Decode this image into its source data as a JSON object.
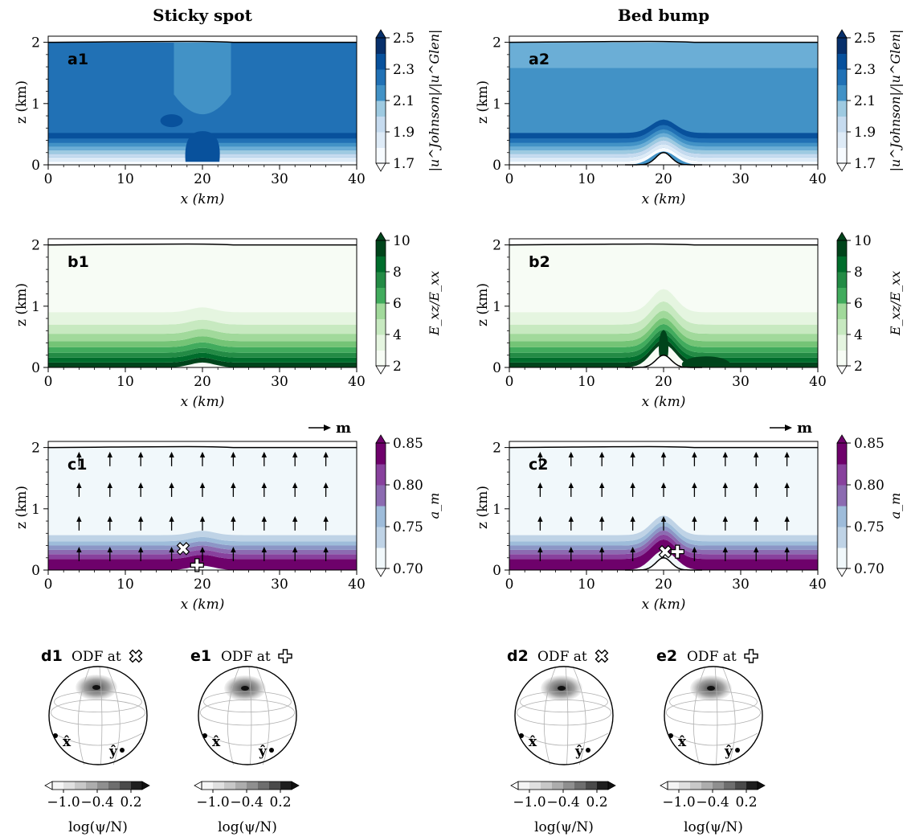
{
  "columns": [
    {
      "key": "sticky",
      "title": "Sticky spot"
    },
    {
      "key": "bump",
      "title": "Bed bump"
    }
  ],
  "axes": {
    "xlabel": "x (km)",
    "ylabel": "z (km)",
    "xticks": [
      0,
      10,
      20,
      30,
      40
    ],
    "yticks": [
      0,
      1,
      2
    ],
    "xlim": [
      0,
      40
    ],
    "ylim": [
      0,
      2.1
    ]
  },
  "rows": [
    {
      "key": "a",
      "colormap": "Blues",
      "colorbar": {
        "label": "|u^Johnson|/|u^Glen|",
        "ticks": [
          "1.7",
          "1.9",
          "2.1",
          "2.3",
          "2.5"
        ],
        "range": [
          1.7,
          2.5
        ],
        "levels": 8
      },
      "panel_labels": [
        "a1",
        "a2"
      ]
    },
    {
      "key": "b",
      "colormap": "Greens",
      "colorbar": {
        "label": "E_xz/E_xx",
        "ticks": [
          "2",
          "4",
          "6",
          "8",
          "10"
        ],
        "range": [
          2,
          10
        ],
        "levels": 8
      },
      "panel_labels": [
        "b1",
        "b2"
      ]
    },
    {
      "key": "c",
      "colormap": "BuPu",
      "colorbar": {
        "label": "a_m",
        "ticks": [
          "0.70",
          "0.75",
          "0.80",
          "0.85"
        ],
        "range": [
          0.7,
          0.85
        ],
        "levels": 6
      },
      "panel_labels": [
        "c1",
        "c2"
      ],
      "arrow_legend": "m"
    }
  ],
  "odf_panels": [
    {
      "label": "d1",
      "title": "ODF at",
      "marker": "cross"
    },
    {
      "label": "e1",
      "title": "ODF at",
      "marker": "plus"
    },
    {
      "label": "d2",
      "title": "ODF at",
      "marker": "cross"
    },
    {
      "label": "e2",
      "title": "ODF at",
      "marker": "plus"
    }
  ],
  "odf_colorbar": {
    "label": "log(ψ/N)",
    "ticks": [
      "−1.0",
      "−0.4",
      "0.2"
    ],
    "range": [
      -1.2,
      0.4
    ],
    "levels": 8
  },
  "odf_axis_labels": {
    "x": "x̂",
    "y": "ŷ"
  },
  "colors": {
    "blues": [
      "#f7fbff",
      "#deebf7",
      "#c6dbef",
      "#9ecae1",
      "#6baed6",
      "#4292c6",
      "#2171b5",
      "#08519c",
      "#08306b"
    ],
    "greens": [
      "#f7fcf5",
      "#e5f5e0",
      "#c7e9c0",
      "#a1d99b",
      "#74c476",
      "#41ab5d",
      "#238b45",
      "#006d2c",
      "#00441b"
    ],
    "bupu": [
      "#f1f8fb",
      "#bfd3e6",
      "#9ebcda",
      "#8c96c6",
      "#8c6bb1",
      "#88419d",
      "#6e016b"
    ],
    "greys": [
      "#f5f5f5",
      "#e0e0e0",
      "#c8c8c8",
      "#adadad",
      "#8f8f8f",
      "#6e6e6e",
      "#4a4a4a",
      "#1e1e1e"
    ]
  },
  "chart_data": {
    "type": "heatmap",
    "description_fields": {
      "x_range_km": [
        0,
        40
      ],
      "z_range_km": [
        0,
        2.1
      ],
      "sticky_spot_center_km": 20,
      "bed_bump_center_km": 20,
      "bed_bump_height_km": 0.2
    },
    "panels": [
      {
        "panel": "a1",
        "field": "|u^Johnson|/|u^Glen|",
        "typical_value_interior": 2.4,
        "basal_value": 1.7
      },
      {
        "panel": "a2",
        "field": "|u^Johnson|/|u^Glen|",
        "typical_value_interior": 2.25,
        "basal_value": 1.7
      },
      {
        "panel": "b1",
        "field": "E_xz/E_xx",
        "surface_value": 2,
        "basal_value": 9
      },
      {
        "panel": "b2",
        "field": "E_xz/E_xx",
        "surface_value": 2,
        "basal_value": 10
      },
      {
        "panel": "c1",
        "field": "a_m",
        "surface_value": 0.7,
        "basal_value": 0.85
      },
      {
        "panel": "c2",
        "field": "a_m",
        "surface_value": 0.7,
        "basal_value": 0.85
      }
    ]
  }
}
